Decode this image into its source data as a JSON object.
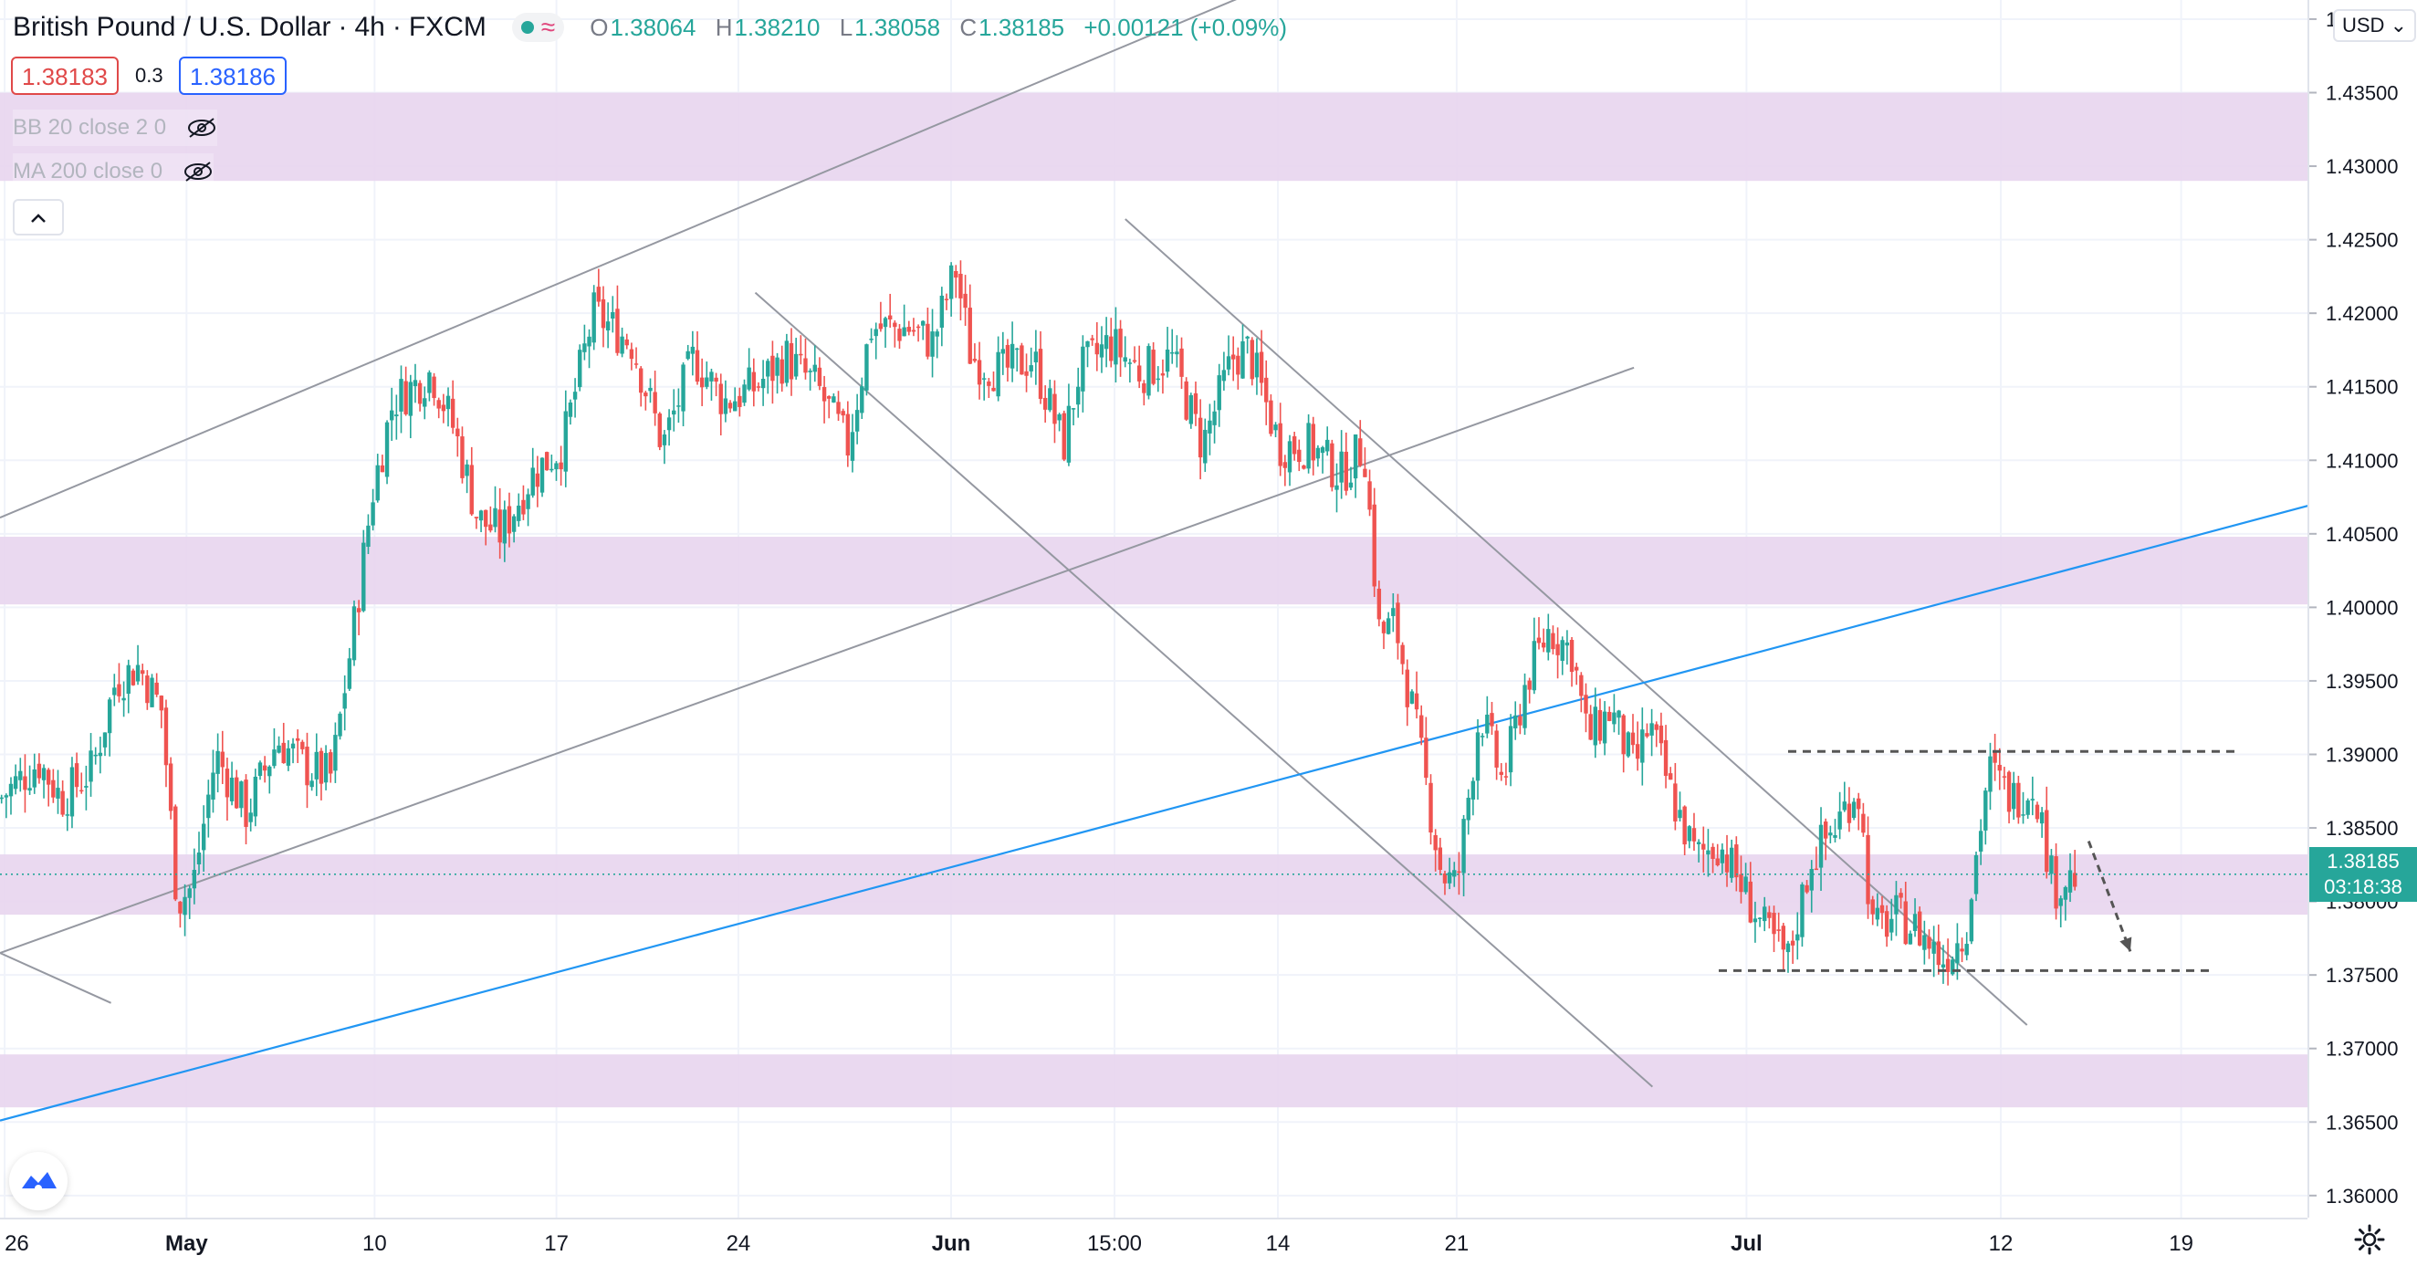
{
  "header": {
    "symbol": "British Pound / U.S. Dollar",
    "interval": "4h",
    "exchange": "FXCM",
    "ohlc": {
      "o_label": "O",
      "o_value": "1.38064",
      "h_label": "H",
      "h_value": "1.38210",
      "l_label": "L",
      "l_value": "1.38058",
      "c_label": "C",
      "c_value": "1.38185",
      "change": "+0.00121 (+0.09%)"
    },
    "bid": "1.38183",
    "spread": "0.3",
    "ask": "1.38186",
    "indicators": [
      {
        "label": "BB 20 close 2 0",
        "icon": "eye-off-icon"
      },
      {
        "label": "MA 200 close 0",
        "icon": "eye-off-icon"
      }
    ],
    "collapse_icon": "chevron-up-icon"
  },
  "price_axis": {
    "currency": "USD",
    "current_price": "1.38185",
    "countdown": "03:18:38",
    "settings_icon": "gear-icon"
  },
  "colors": {
    "up": "#26a69a",
    "down": "#ef5350",
    "zone": "#e8d5ee",
    "trendline": "#9598a1",
    "blue_line": "#2196f3",
    "dashed": "#555555"
  },
  "chart_data": {
    "type": "candlestick",
    "title": "British Pound / U.S. Dollar",
    "interval": "4h",
    "y_ticks": [
      "1.36000",
      "1.36500",
      "1.37000",
      "1.37500",
      "1.38000",
      "1.38500",
      "1.39000",
      "1.39500",
      "1.40000",
      "1.40500",
      "1.41000",
      "1.41500",
      "1.42000",
      "1.42500",
      "1.43000",
      "1.43500",
      "1.44000"
    ],
    "ylim": [
      1.3585,
      1.4413
    ],
    "x_ticks": [
      "26",
      "May",
      "10",
      "17",
      "24",
      "Jun",
      "15:00",
      "14",
      "21",
      "Jul",
      "12",
      "19"
    ],
    "close_path": [
      {
        "x": 0,
        "y": 1.387
      },
      {
        "x": 25,
        "y": 1.3895
      },
      {
        "x": 40,
        "y": 1.387
      },
      {
        "x": 60,
        "y": 1.389
      },
      {
        "x": 75,
        "y": 1.395
      },
      {
        "x": 90,
        "y": 1.396
      },
      {
        "x": 105,
        "y": 1.393
      },
      {
        "x": 115,
        "y": 1.38
      },
      {
        "x": 125,
        "y": 1.381
      },
      {
        "x": 140,
        "y": 1.39
      },
      {
        "x": 160,
        "y": 1.386
      },
      {
        "x": 180,
        "y": 1.391
      },
      {
        "x": 200,
        "y": 1.389
      },
      {
        "x": 215,
        "y": 1.3885
      },
      {
        "x": 230,
        "y": 1.399
      },
      {
        "x": 242,
        "y": 1.408
      },
      {
        "x": 255,
        "y": 1.414
      },
      {
        "x": 280,
        "y": 1.416
      },
      {
        "x": 295,
        "y": 1.412
      },
      {
        "x": 310,
        "y": 1.406
      },
      {
        "x": 325,
        "y": 1.405
      },
      {
        "x": 345,
        "y": 1.409
      },
      {
        "x": 365,
        "y": 1.411
      },
      {
        "x": 385,
        "y": 1.42
      },
      {
        "x": 410,
        "y": 1.418
      },
      {
        "x": 430,
        "y": 1.411
      },
      {
        "x": 450,
        "y": 1.417
      },
      {
        "x": 470,
        "y": 1.414
      },
      {
        "x": 490,
        "y": 1.415
      },
      {
        "x": 510,
        "y": 1.417
      },
      {
        "x": 530,
        "y": 1.415
      },
      {
        "x": 550,
        "y": 1.411
      },
      {
        "x": 565,
        "y": 1.419
      },
      {
        "x": 590,
        "y": 1.419
      },
      {
        "x": 605,
        "y": 1.418
      },
      {
        "x": 620,
        "y": 1.423
      },
      {
        "x": 630,
        "y": 1.417
      },
      {
        "x": 650,
        "y": 1.416
      },
      {
        "x": 670,
        "y": 1.417
      },
      {
        "x": 690,
        "y": 1.411
      },
      {
        "x": 700,
        "y": 1.416
      },
      {
        "x": 720,
        "y": 1.418
      },
      {
        "x": 740,
        "y": 1.416
      },
      {
        "x": 760,
        "y": 1.417
      },
      {
        "x": 780,
        "y": 1.411
      },
      {
        "x": 800,
        "y": 1.417
      },
      {
        "x": 810,
        "y": 1.4175
      },
      {
        "x": 830,
        "y": 1.411
      },
      {
        "x": 850,
        "y": 1.411
      },
      {
        "x": 870,
        "y": 1.409
      },
      {
        "x": 885,
        "y": 1.411
      },
      {
        "x": 895,
        "y": 1.398
      },
      {
        "x": 905,
        "y": 1.399
      },
      {
        "x": 920,
        "y": 1.391
      },
      {
        "x": 935,
        "y": 1.382
      },
      {
        "x": 945,
        "y": 1.381
      },
      {
        "x": 960,
        "y": 1.393
      },
      {
        "x": 975,
        "y": 1.388
      },
      {
        "x": 990,
        "y": 1.395
      },
      {
        "x": 1005,
        "y": 1.3985
      },
      {
        "x": 1020,
        "y": 1.397
      },
      {
        "x": 1030,
        "y": 1.391
      },
      {
        "x": 1045,
        "y": 1.393
      },
      {
        "x": 1060,
        "y": 1.389
      },
      {
        "x": 1070,
        "y": 1.392
      },
      {
        "x": 1085,
        "y": 1.387
      },
      {
        "x": 1100,
        "y": 1.383
      },
      {
        "x": 1115,
        "y": 1.384
      },
      {
        "x": 1130,
        "y": 1.381
      },
      {
        "x": 1145,
        "y": 1.378
      },
      {
        "x": 1160,
        "y": 1.376
      },
      {
        "x": 1175,
        "y": 1.383
      },
      {
        "x": 1190,
        "y": 1.385
      },
      {
        "x": 1205,
        "y": 1.388
      },
      {
        "x": 1215,
        "y": 1.378
      },
      {
        "x": 1230,
        "y": 1.379
      },
      {
        "x": 1245,
        "y": 1.378
      },
      {
        "x": 1260,
        "y": 1.376
      },
      {
        "x": 1275,
        "y": 1.378
      },
      {
        "x": 1290,
        "y": 1.389
      },
      {
        "x": 1305,
        "y": 1.387
      },
      {
        "x": 1320,
        "y": 1.388
      },
      {
        "x": 1332,
        "y": 1.381
      },
      {
        "x": 1347,
        "y": 1.3818
      }
    ],
    "zones": [
      {
        "from": 1.429,
        "to": 1.435
      },
      {
        "from": 1.4002,
        "to": 1.4048
      },
      {
        "from": 1.3791,
        "to": 1.3832
      },
      {
        "from": 1.366,
        "to": 1.3696
      }
    ],
    "trendlines": [
      {
        "kind": "channel",
        "from": {
          "x": 0,
          "y": 1.4061
        },
        "to": {
          "x": 860,
          "y": 1.4439
        }
      },
      {
        "kind": "channel",
        "from": {
          "x": 0,
          "y": 1.3765
        },
        "to": {
          "x": 1060,
          "y": 1.4163
        }
      },
      {
        "kind": "channel",
        "from": {
          "x": 0,
          "y": 1.3765
        },
        "to": {
          "x": 72,
          "y": 1.3731
        }
      },
      {
        "kind": "channel",
        "from": {
          "x": 490,
          "y": 1.4214
        },
        "to": {
          "x": 1072,
          "y": 1.3674
        }
      },
      {
        "kind": "channel",
        "from": {
          "x": 730,
          "y": 1.4264
        },
        "to": {
          "x": 1315,
          "y": 1.3716
        }
      },
      {
        "kind": "blue",
        "from": {
          "x": 0,
          "y": 1.3651
        },
        "to": {
          "x": 1497,
          "y": 1.4069
        }
      }
    ],
    "levels": [
      {
        "value": 1.3902,
        "x_from": 1160,
        "x_to": 1450
      },
      {
        "value": 1.3753,
        "x_from": 1115,
        "x_to": 1435
      }
    ],
    "projection_arrow": {
      "from": {
        "x": 1355,
        "y": 1.3841
      },
      "to": {
        "x": 1382,
        "y": 1.3766
      }
    },
    "current_price": 1.38185
  }
}
